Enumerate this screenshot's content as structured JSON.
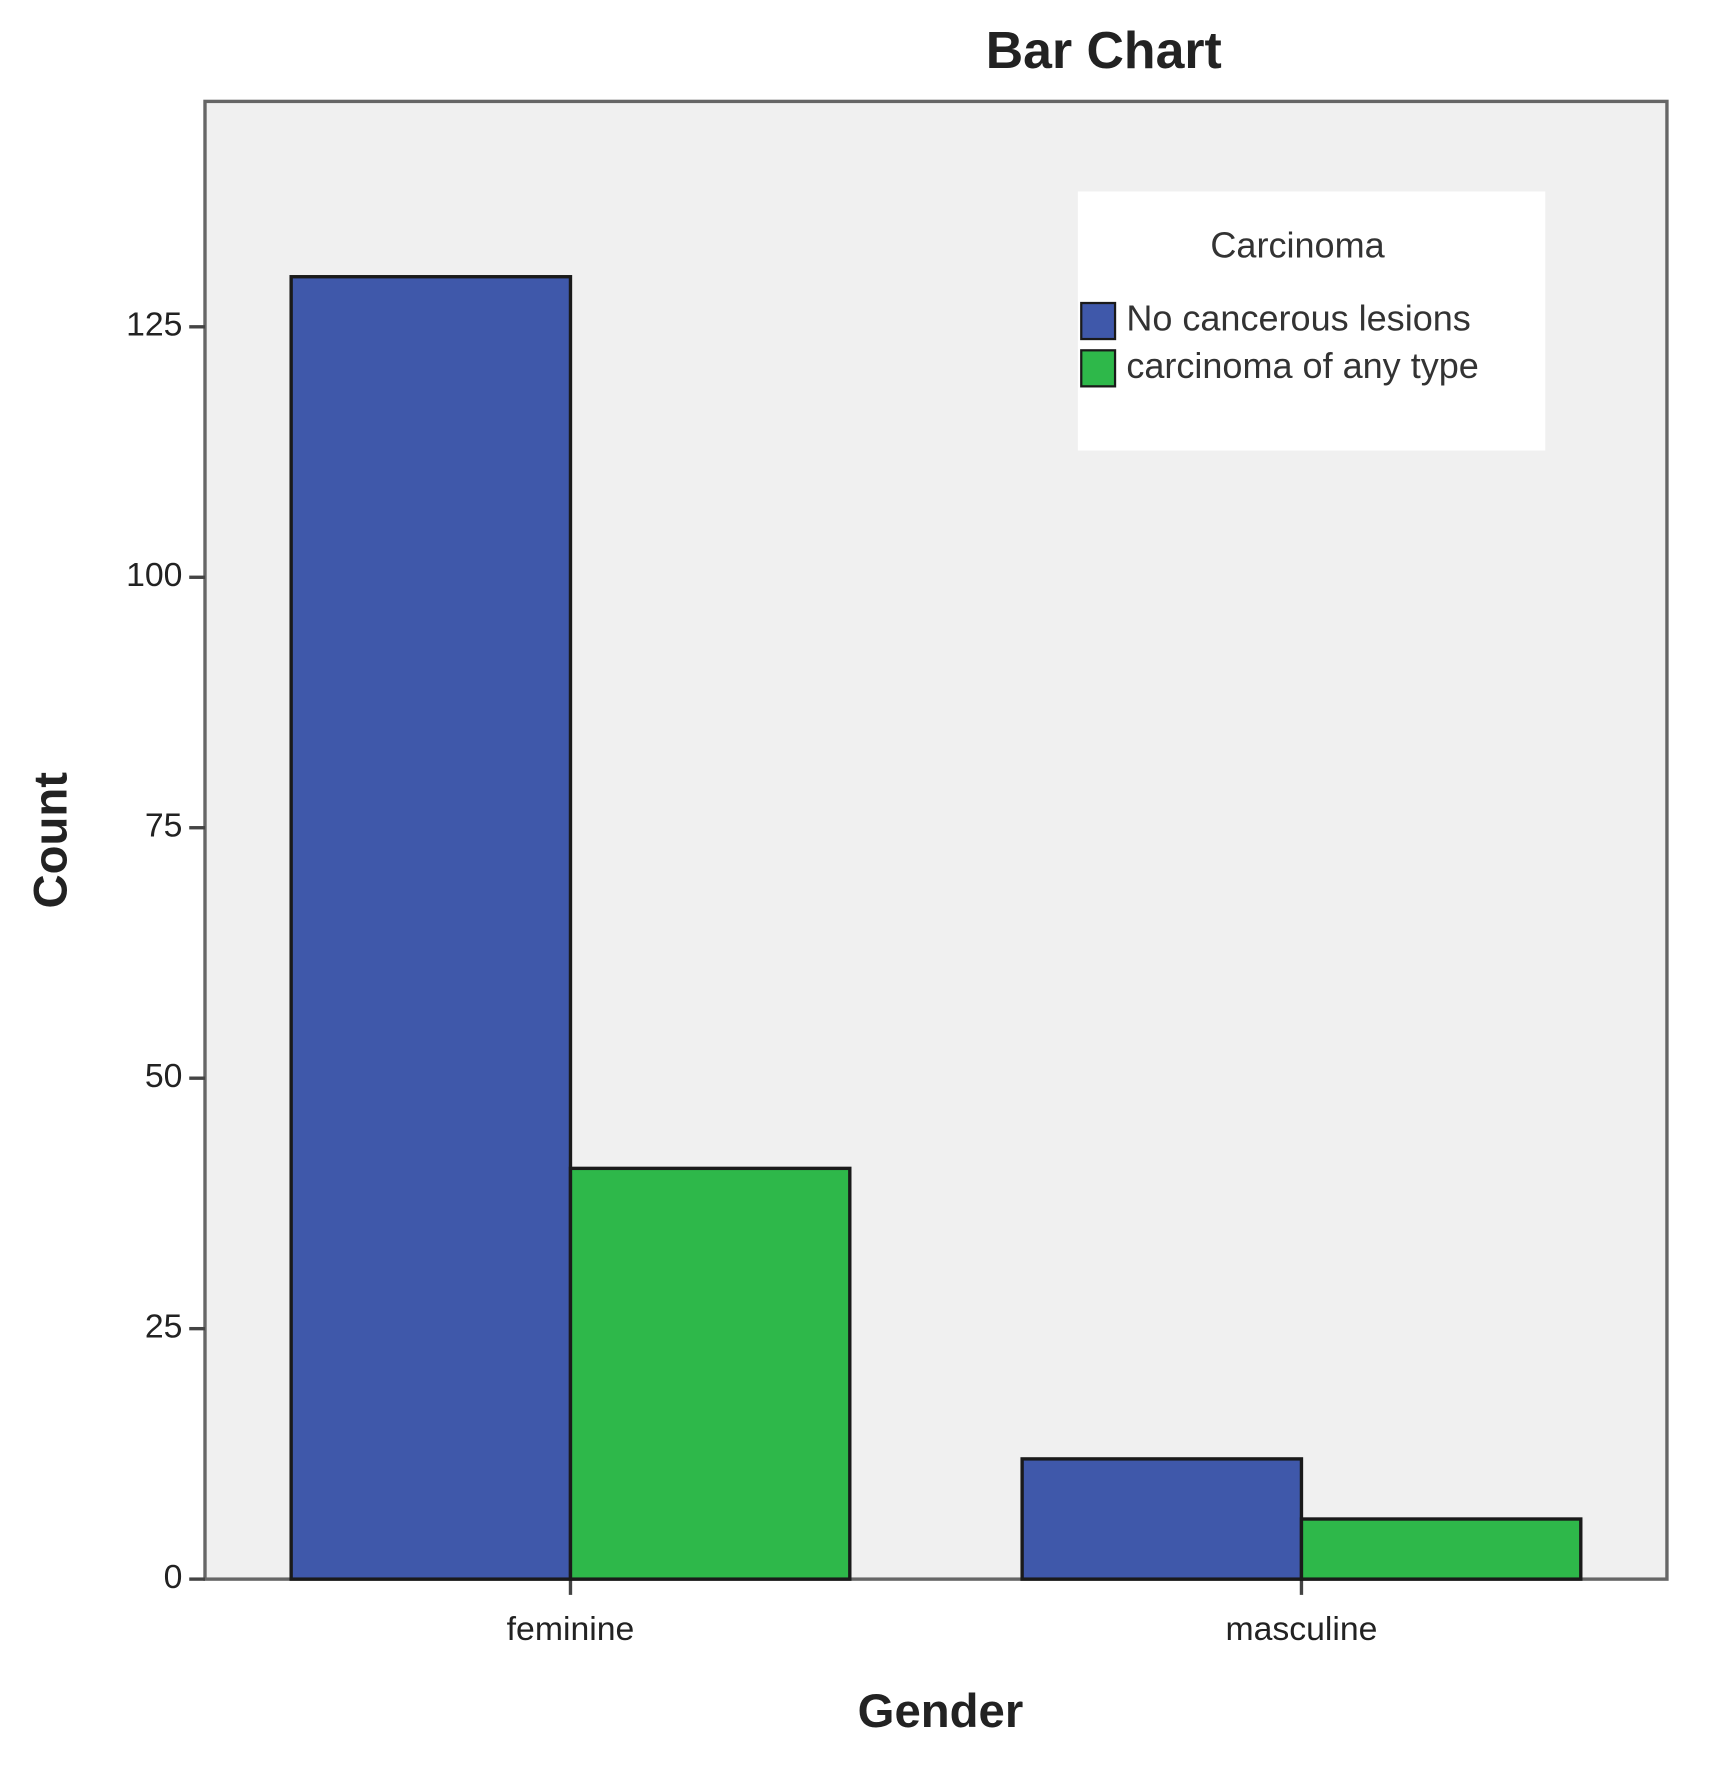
{
  "chart_data": {
    "type": "bar",
    "title": "Bar Chart",
    "x_label": "Gender",
    "y_label": "Count",
    "categories": [
      "feminine",
      "masculine"
    ],
    "series": [
      {
        "name": "No cancerous lesions",
        "color": "#3f58aa",
        "values": [
          130,
          12
        ]
      },
      {
        "name": "carcinoma of any type",
        "color": "#2eb84a",
        "values": [
          41,
          6
        ]
      }
    ],
    "legend_title": "Carcinoma",
    "legend": "upper right",
    "ylim": [
      0,
      147.5
    ],
    "yticks": [
      0,
      25,
      50,
      75,
      100,
      125
    ],
    "grid": false
  }
}
